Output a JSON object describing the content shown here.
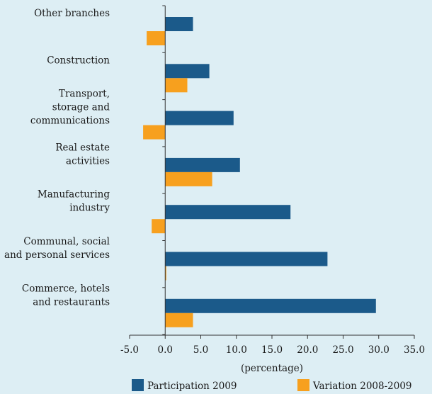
{
  "chart_data": {
    "type": "bar",
    "orientation": "horizontal",
    "categories": [
      [
        "Other branches"
      ],
      [
        "Construction"
      ],
      [
        "Transport,",
        "storage and",
        "communications"
      ],
      [
        "Real estate",
        "activities"
      ],
      [
        "Manufacturing",
        "industry"
      ],
      [
        "Communal, social",
        "and personal services"
      ],
      [
        "Commerce, hotels",
        "and restaurants"
      ]
    ],
    "series": [
      {
        "name": "Participation 2009",
        "color": "#1b5a8a",
        "values": [
          3.9,
          6.2,
          9.6,
          10.5,
          17.6,
          22.8,
          29.6
        ]
      },
      {
        "name": "Variation 2008-2009",
        "color": "#f7a01e",
        "values": [
          -2.6,
          3.1,
          -3.1,
          6.6,
          -1.9,
          0.1,
          3.9
        ]
      }
    ],
    "xlim": [
      -5.0,
      35.0
    ],
    "xticks": [
      "-5.0",
      "0.0",
      "5.0",
      "10.0",
      "15.0",
      "20.0",
      "25.0",
      "30.0",
      "35.0"
    ],
    "xlabel": "(percentage)",
    "legend_position": "bottom"
  }
}
